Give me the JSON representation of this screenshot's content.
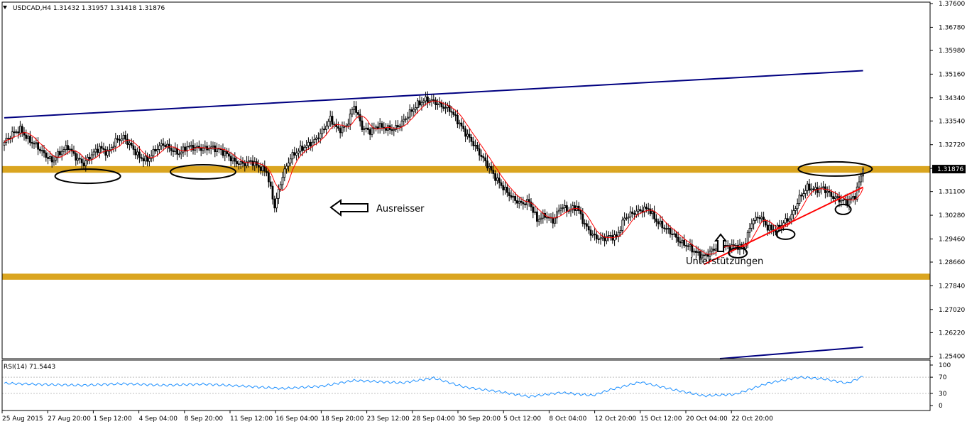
{
  "header": {
    "symbol_line": "USDCAD,H4  1.31432 1.31957 1.31418 1.31876",
    "rsi_label": "RSI(14) 71.5443"
  },
  "annotations": {
    "breakout": "Ausreisser",
    "supports": "Unterstützungen"
  },
  "current_price": "1.31876",
  "colors": {
    "background": "#ffffff",
    "candle": "#000000",
    "moving_average": "#ff0000",
    "channel_line": "#000080",
    "zone": "#daa520",
    "trendline": "#ff0000",
    "rsi_line": "#1e90ff",
    "price_badge": "#000000"
  },
  "chart_data": [
    {
      "type": "candlestick",
      "title": "USDCAD,H4",
      "ohlc_last": {
        "open": 1.31432,
        "high": 1.31957,
        "low": 1.31418,
        "close": 1.31876
      },
      "y_ticks": [
        1.376,
        1.3678,
        1.3598,
        1.3516,
        1.3434,
        1.3354,
        1.3272,
        1.319,
        1.311,
        1.3028,
        1.2946,
        1.2866,
        1.2784,
        1.2702,
        1.2622,
        1.254
      ],
      "ylim": [
        1.2532,
        1.3765
      ],
      "x_ticks": [
        "25 Aug 2015",
        "27 Aug 20:00",
        "1 Sep 12:00",
        "4 Sep 04:00",
        "8 Sep 20:00",
        "11 Sep 12:00",
        "16 Sep 04:00",
        "18 Sep 20:00",
        "23 Sep 12:00",
        "28 Sep 04:00",
        "30 Sep 20:00",
        "5 Oct 12:00",
        "8 Oct 04:00",
        "12 Oct 20:00",
        "15 Oct 12:00",
        "20 Oct 04:00",
        "22 Oct 20:00"
      ],
      "close_path": [
        [
          0,
          1.328
        ],
        [
          4,
          1.331
        ],
        [
          8,
          1.3325
        ],
        [
          12,
          1.329
        ],
        [
          16,
          1.327
        ],
        [
          20,
          1.324
        ],
        [
          24,
          1.3215
        ],
        [
          28,
          1.3245
        ],
        [
          32,
          1.3265
        ],
        [
          36,
          1.3228
        ],
        [
          40,
          1.3205
        ],
        [
          44,
          1.3238
        ],
        [
          48,
          1.3262
        ],
        [
          52,
          1.3242
        ],
        [
          56,
          1.3285
        ],
        [
          60,
          1.3298
        ],
        [
          64,
          1.3265
        ],
        [
          68,
          1.3228
        ],
        [
          72,
          1.3218
        ],
        [
          76,
          1.3255
        ],
        [
          80,
          1.3275
        ],
        [
          84,
          1.3255
        ],
        [
          88,
          1.3242
        ],
        [
          92,
          1.3265
        ],
        [
          96,
          1.3262
        ],
        [
          100,
          1.3258
        ],
        [
          104,
          1.3262
        ],
        [
          108,
          1.3255
        ],
        [
          112,
          1.3238
        ],
        [
          116,
          1.3212
        ],
        [
          120,
          1.3205
        ],
        [
          124,
          1.3215
        ],
        [
          128,
          1.3195
        ],
        [
          132,
          1.3178
        ],
        [
          136,
          1.3058
        ],
        [
          140,
          1.3165
        ],
        [
          144,
          1.3228
        ],
        [
          148,
          1.3252
        ],
        [
          152,
          1.3268
        ],
        [
          156,
          1.3285
        ],
        [
          160,
          1.3318
        ],
        [
          164,
          1.3362
        ],
        [
          168,
          1.3322
        ],
        [
          172,
          1.3335
        ],
        [
          176,
          1.3408
        ],
        [
          180,
          1.3332
        ],
        [
          184,
          1.3318
        ],
        [
          188,
          1.3338
        ],
        [
          192,
          1.3328
        ],
        [
          196,
          1.3325
        ],
        [
          200,
          1.3348
        ],
        [
          204,
          1.3382
        ],
        [
          208,
          1.3412
        ],
        [
          212,
          1.3428
        ],
        [
          216,
          1.3422
        ],
        [
          220,
          1.3405
        ],
        [
          224,
          1.3395
        ],
        [
          228,
          1.3355
        ],
        [
          232,
          1.3312
        ],
        [
          236,
          1.3275
        ],
        [
          240,
          1.3232
        ],
        [
          244,
          1.3192
        ],
        [
          248,
          1.3148
        ],
        [
          252,
          1.3115
        ],
        [
          256,
          1.3085
        ],
        [
          260,
          1.3068
        ],
        [
          264,
          1.3075
        ],
        [
          268,
          1.3012
        ],
        [
          272,
          1.3028
        ],
        [
          276,
          1.3008
        ],
        [
          280,
          1.3058
        ],
        [
          284,
          1.3045
        ],
        [
          288,
          1.3058
        ],
        [
          292,
          1.2995
        ],
        [
          296,
          1.2958
        ],
        [
          300,
          1.2945
        ],
        [
          304,
          1.2955
        ],
        [
          308,
          1.2952
        ],
        [
          312,
          1.3018
        ],
        [
          316,
          1.3035
        ],
        [
          320,
          1.3045
        ],
        [
          324,
          1.3052
        ],
        [
          328,
          1.3008
        ],
        [
          332,
          1.2985
        ],
        [
          336,
          1.2965
        ],
        [
          340,
          1.2935
        ],
        [
          344,
          1.2922
        ],
        [
          348,
          1.2898
        ],
        [
          352,
          1.2885
        ],
        [
          356,
          1.2905
        ],
        [
          360,
          1.2928
        ],
        [
          364,
          1.2918
        ],
        [
          368,
          1.2922
        ],
        [
          372,
          1.2915
        ],
        [
          376,
          1.3005
        ],
        [
          380,
          1.3025
        ],
        [
          384,
          1.2985
        ],
        [
          388,
          1.2975
        ],
        [
          392,
          1.3002
        ],
        [
          396,
          1.3025
        ],
        [
          400,
          1.3088
        ],
        [
          404,
          1.3125
        ],
        [
          408,
          1.3115
        ],
        [
          412,
          1.3122
        ],
        [
          416,
          1.3095
        ],
        [
          420,
          1.3082
        ],
        [
          424,
          1.3075
        ],
        [
          428,
          1.3095
        ],
        [
          432,
          1.3188
        ]
      ],
      "moving_average": "red line",
      "price_zones": [
        [
          1.3175,
          1.3198
        ],
        [
          1.2805,
          1.2826
        ]
      ],
      "channel_upper": [
        [
          0,
          1.3365
        ],
        [
          432,
          1.3528
        ]
      ],
      "channel_lower": [
        [
          360,
          1.2532
        ],
        [
          432,
          1.2572
        ]
      ],
      "support_trendline": [
        [
          352,
          1.2858
        ],
        [
          432,
          1.3125
        ]
      ]
    },
    {
      "type": "line",
      "title": "RSI(14) 71.5443",
      "name": "RSI(14)",
      "y_ticks": [
        100,
        70,
        30,
        0
      ],
      "ylim": [
        0,
        100
      ],
      "current": 71.5443,
      "x": [
        0,
        20,
        40,
        60,
        80,
        100,
        120,
        140,
        160,
        176,
        200,
        216,
        232,
        248,
        264,
        280,
        296,
        304,
        320,
        336,
        352,
        368,
        384,
        400,
        412,
        424,
        432
      ],
      "y": [
        55,
        52,
        50,
        54,
        50,
        53,
        48,
        42,
        48,
        62,
        56,
        68,
        45,
        35,
        22,
        32,
        25,
        38,
        58,
        40,
        24,
        28,
        55,
        70,
        66,
        55,
        71.5443
      ]
    }
  ]
}
